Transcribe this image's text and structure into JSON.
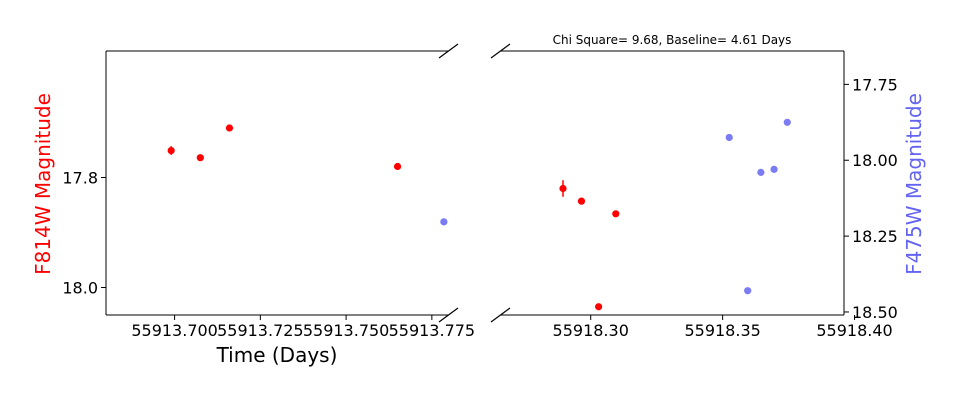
{
  "chart_data": {
    "type": "scatter",
    "title": "Chi Square= 9.68, Baseline= 4.61 Days",
    "xlabel": "Time (Days)",
    "ylabel_left": "F814W Magnitude",
    "ylabel_right": "F475W Magnitude",
    "colors": {
      "f814w": "#ff0000",
      "f475w": "#6464f0",
      "axes": "#000000"
    },
    "grid": false,
    "broken_x_axis": true,
    "left_panel": {
      "xlim": [
        55913.68,
        55913.78
      ],
      "x_ticks": [
        55913.7,
        55913.725,
        55913.75,
        55913.775
      ],
      "x_tick_labels": [
        "55913.700",
        "55913.725",
        "55913.750",
        "55913.775"
      ],
      "y_inverted": true,
      "ylim": [
        17.57,
        18.05
      ],
      "y_ticks": [
        17.8,
        18.0
      ],
      "y_tick_labels": [
        "17.8",
        "18.0"
      ]
    },
    "right_panel": {
      "xlim": [
        55918.266,
        55918.396
      ],
      "x_ticks": [
        55918.3,
        55918.35,
        55918.4
      ],
      "x_tick_labels": [
        "55918.30",
        "55918.35",
        "55918.40"
      ],
      "y_inverted": true,
      "ylim": [
        17.64,
        18.51
      ],
      "y_ticks": [
        17.75,
        18.0,
        18.25,
        18.5
      ],
      "y_tick_labels": [
        "17.75",
        "18.00",
        "18.25",
        "18.50"
      ]
    },
    "series": [
      {
        "name": "F814W",
        "axis": "left",
        "points": [
          {
            "x": 55913.699,
            "y": 17.751,
            "err": 0.008
          },
          {
            "x": 55913.7075,
            "y": 17.764,
            "err": 0.003
          },
          {
            "x": 55913.716,
            "y": 17.71,
            "err": 0.003
          },
          {
            "x": 55913.765,
            "y": 17.78,
            "err": 0.003
          },
          {
            "x": 55918.2895,
            "y": 17.82,
            "err": 0.015
          },
          {
            "x": 55918.2965,
            "y": 17.843,
            "err": 0.003
          },
          {
            "x": 55918.303,
            "y": 18.035,
            "err": 0.003
          },
          {
            "x": 55918.3095,
            "y": 17.866,
            "err": 0.003
          }
        ]
      },
      {
        "name": "F475W",
        "axis": "right",
        "points": [
          {
            "x": 55913.7785,
            "y": 18.203
          },
          {
            "x": 55918.3525,
            "y": 17.925
          },
          {
            "x": 55918.3595,
            "y": 18.43
          },
          {
            "x": 55918.3645,
            "y": 18.04
          },
          {
            "x": 55918.3695,
            "y": 18.03
          },
          {
            "x": 55918.3745,
            "y": 17.875
          }
        ]
      }
    ]
  }
}
